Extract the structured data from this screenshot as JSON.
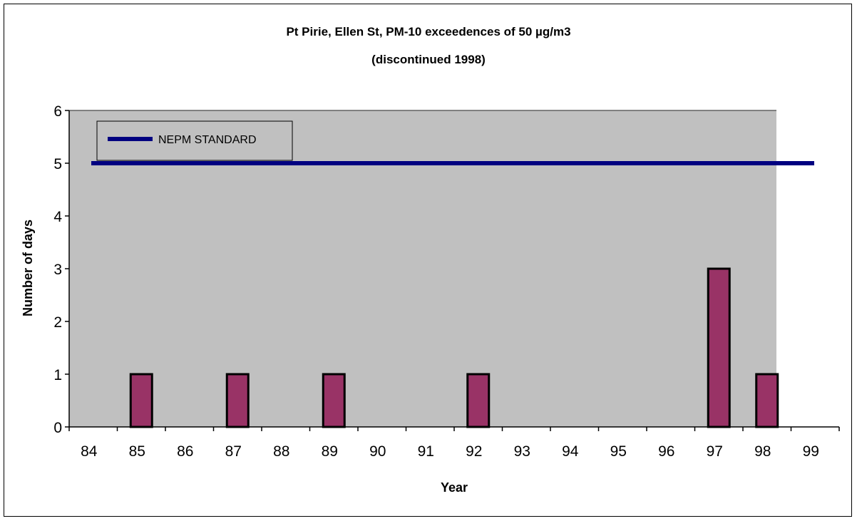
{
  "chart_data": {
    "type": "bar",
    "title": "Pt Pirie, Ellen St, PM-10 exceedences of 50 µg/m3",
    "subtitle": "(discontinued 1998)",
    "xlabel": "Year",
    "ylabel": "Number of  days",
    "categories": [
      "84",
      "85",
      "86",
      "87",
      "88",
      "89",
      "90",
      "91",
      "92",
      "93",
      "94",
      "95",
      "96",
      "97",
      "98",
      "99"
    ],
    "series": [
      {
        "values": [
          0,
          1,
          0,
          1,
          0,
          1,
          0,
          0,
          1,
          0,
          0,
          0,
          0,
          3,
          1,
          0
        ],
        "color": "#993366"
      }
    ],
    "reference_line": {
      "name": "NEPM STANDARD",
      "value": 5,
      "color": "#000080"
    },
    "ylim": [
      0,
      6
    ],
    "yticks": [
      0,
      1,
      2,
      3,
      4,
      5,
      6
    ],
    "legend": {
      "position": "top-left",
      "entries": [
        "NEPM STANDARD"
      ]
    },
    "plot_background": "#c0c0c0",
    "grid": false
  }
}
